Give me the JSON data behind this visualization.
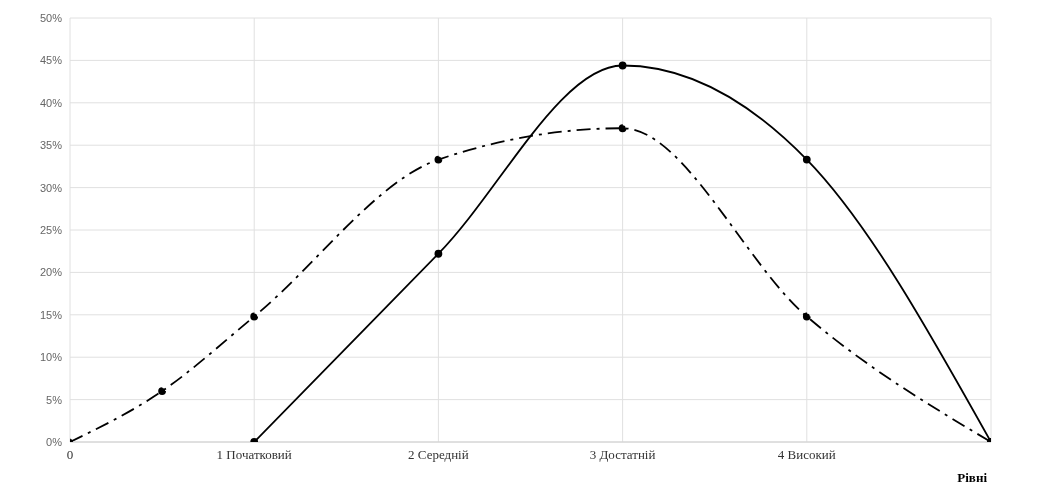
{
  "chart_data": {
    "type": "line",
    "xlabel": "Рівні",
    "series": [
      {
        "color": "#000000",
        "line_style": "solid",
        "x": [
          1,
          2,
          3,
          4,
          5
        ],
        "values": [
          0,
          22.2,
          44.4,
          33.3,
          0
        ]
      },
      {
        "color": "#000000",
        "line_style": "dashed",
        "x": [
          0,
          0.5,
          1,
          2,
          3,
          4,
          5
        ],
        "values": [
          0,
          6,
          14.8,
          33.3,
          37,
          14.8,
          0
        ]
      }
    ],
    "xlim": [
      0,
      5
    ],
    "xticks": [
      {
        "value": 0,
        "label": "0"
      },
      {
        "value": 1,
        "label": "1 Початковий"
      },
      {
        "value": 2,
        "label": "2 Середній"
      },
      {
        "value": 3,
        "label": "3 Достатній"
      },
      {
        "value": 4,
        "label": "4 Високий"
      }
    ],
    "ylim": [
      0,
      50
    ],
    "yticks": [
      {
        "value": 0,
        "label": "0%"
      },
      {
        "value": 5,
        "label": "5%"
      },
      {
        "value": 10,
        "label": "10%"
      },
      {
        "value": 15,
        "label": "15%"
      },
      {
        "value": 20,
        "label": "20%"
      },
      {
        "value": 25,
        "label": "25%"
      },
      {
        "value": 30,
        "label": "30%"
      },
      {
        "value": 35,
        "label": "35%"
      },
      {
        "value": 40,
        "label": "40%"
      },
      {
        "value": 45,
        "label": "45%"
      },
      {
        "value": 50,
        "label": "50%"
      }
    ],
    "grid": true,
    "marker": "circle"
  }
}
